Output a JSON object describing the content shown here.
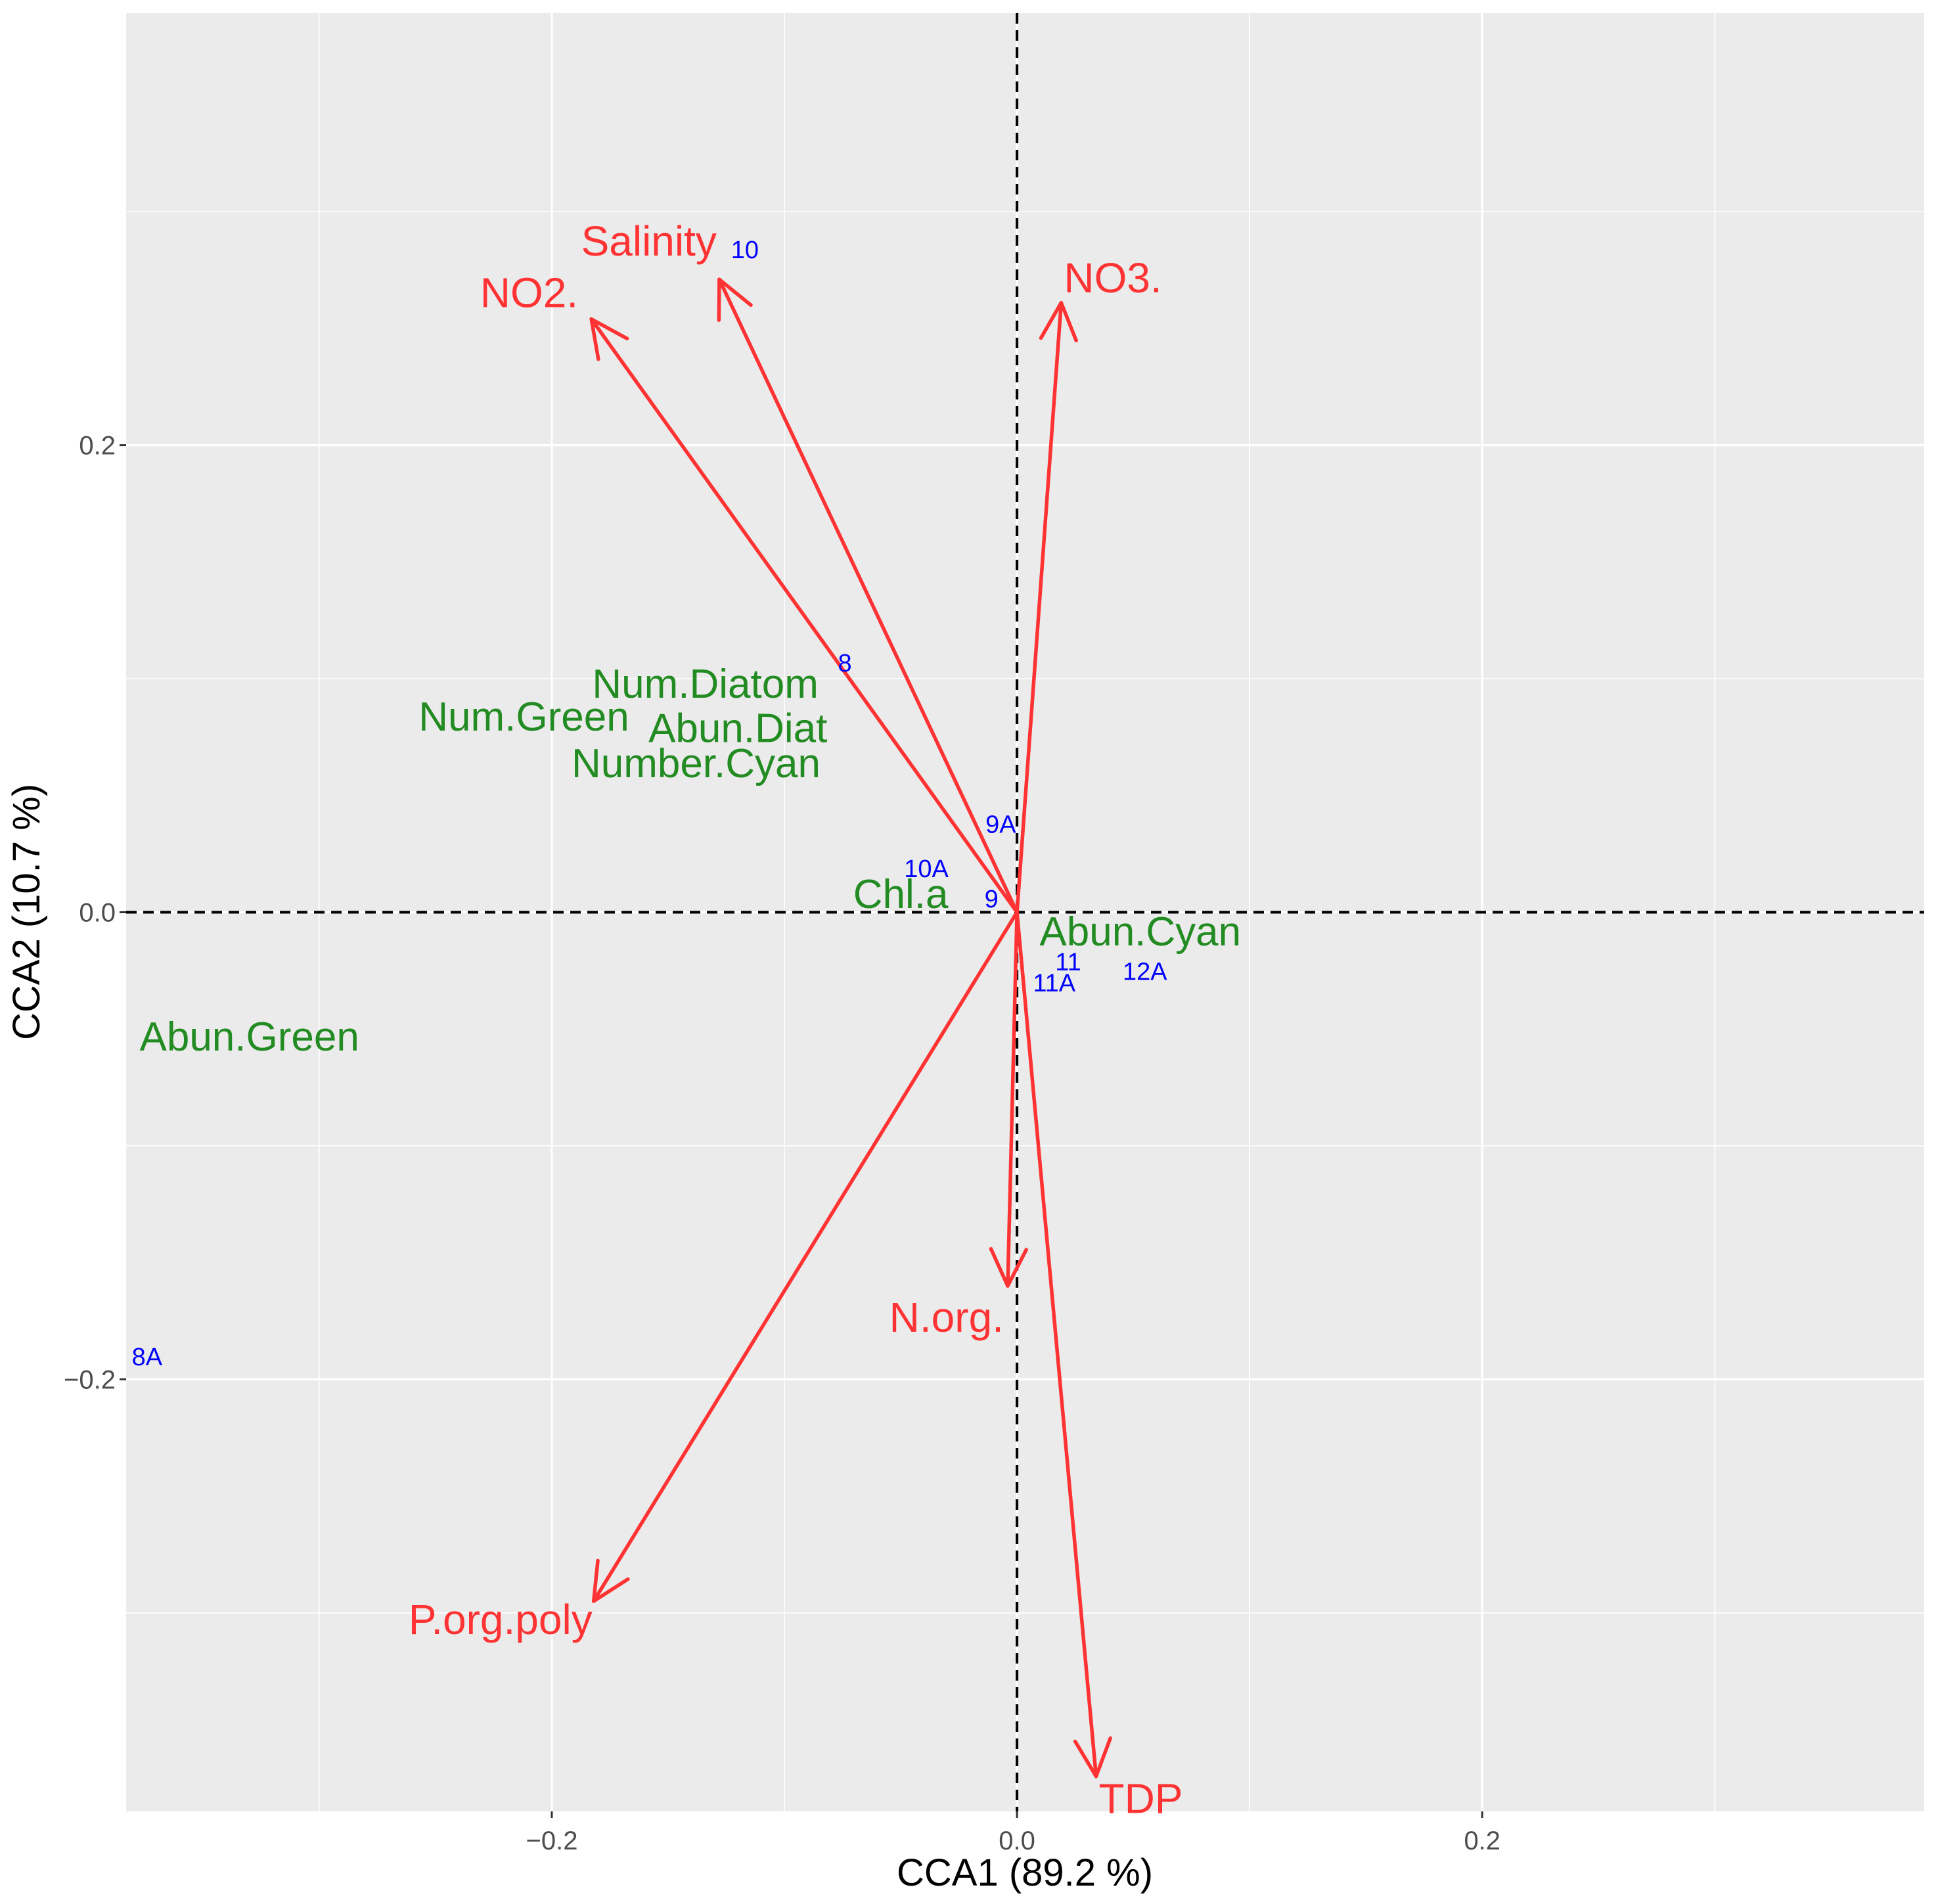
{
  "chart_data": {
    "type": "scatter",
    "subtype": "CCA biplot",
    "xlabel": "CCA1 (89.2 %)",
    "ylabel": "CCA2 (10.7 %)",
    "xlim": [
      -0.383,
      0.39
    ],
    "ylim": [
      -0.385,
      0.385
    ],
    "x_ticks": [
      -0.2,
      0.0,
      0.2
    ],
    "x_tick_labels": [
      "−0.2",
      "0.0",
      "0.2"
    ],
    "y_ticks": [
      -0.2,
      0.0,
      0.2
    ],
    "y_tick_labels": [
      "−0.2",
      "0.0",
      "0.2"
    ],
    "grid": true,
    "reference_lines": {
      "x": 0,
      "y": 0,
      "style": "dashed"
    },
    "colors": {
      "panel": "#ebebeb",
      "grid": "#ffffff",
      "env_vectors": "#ff3333",
      "species_labels": "#228b22",
      "site_labels": "#0000ff",
      "reference_lines": "#000000"
    },
    "env_vectors": [
      {
        "name": "NO2.",
        "x": -0.183,
        "y": 0.254
      },
      {
        "name": "Salinity",
        "x": -0.128,
        "y": 0.271
      },
      {
        "name": "NO3.",
        "x": 0.019,
        "y": 0.261
      },
      {
        "name": "N.org.",
        "x": -0.004,
        "y": -0.16
      },
      {
        "name": "P.org.poly",
        "x": -0.182,
        "y": -0.295
      },
      {
        "name": "TDP",
        "x": 0.034,
        "y": -0.37
      }
    ],
    "species": [
      {
        "name": "Num.Diatom",
        "x": -0.134,
        "y": 0.098
      },
      {
        "name": "Num.Green",
        "x": -0.212,
        "y": 0.084
      },
      {
        "name": "Abun.Diat",
        "x": -0.12,
        "y": 0.079
      },
      {
        "name": "Number.Cyan",
        "x": -0.138,
        "y": 0.064
      },
      {
        "name": "Chl.a",
        "x": -0.05,
        "y": 0.008
      },
      {
        "name": "Abun.Cyan",
        "x": 0.053,
        "y": -0.008
      },
      {
        "name": "Abun.Green",
        "x": -0.33,
        "y": -0.053
      }
    ],
    "sites": [
      {
        "name": "10",
        "x": -0.117,
        "y": 0.284
      },
      {
        "name": "8",
        "x": -0.074,
        "y": 0.107
      },
      {
        "name": "9A",
        "x": -0.007,
        "y": 0.038
      },
      {
        "name": "10A",
        "x": -0.039,
        "y": 0.019
      },
      {
        "name": "9",
        "x": -0.011,
        "y": 0.006
      },
      {
        "name": "11",
        "x": 0.022,
        "y": -0.021
      },
      {
        "name": "11A",
        "x": 0.016,
        "y": -0.03
      },
      {
        "name": "12A",
        "x": 0.055,
        "y": -0.025
      },
      {
        "name": "8A",
        "x": -0.374,
        "y": -0.19
      }
    ]
  }
}
